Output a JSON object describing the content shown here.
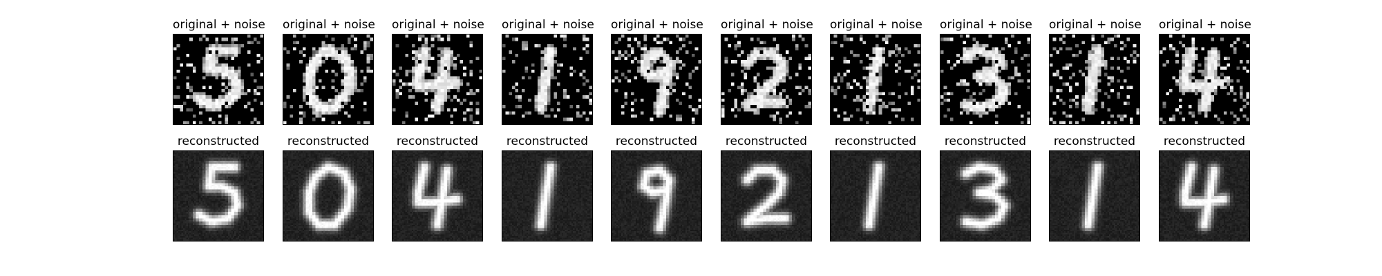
{
  "figure": {
    "row_titles": [
      "original + noise",
      "reconstructed"
    ],
    "rows": [
      {
        "name": "noisy-row",
        "title": "original + noise",
        "digits": [
          "5",
          "0",
          "4",
          "1",
          "9",
          "2",
          "1",
          "3",
          "1",
          "4"
        ]
      },
      {
        "name": "reconstructed-row",
        "title": "reconstructed",
        "digits": [
          "5",
          "0",
          "4",
          "1",
          "9",
          "2",
          "1",
          "3",
          "1",
          "4"
        ]
      }
    ]
  }
}
